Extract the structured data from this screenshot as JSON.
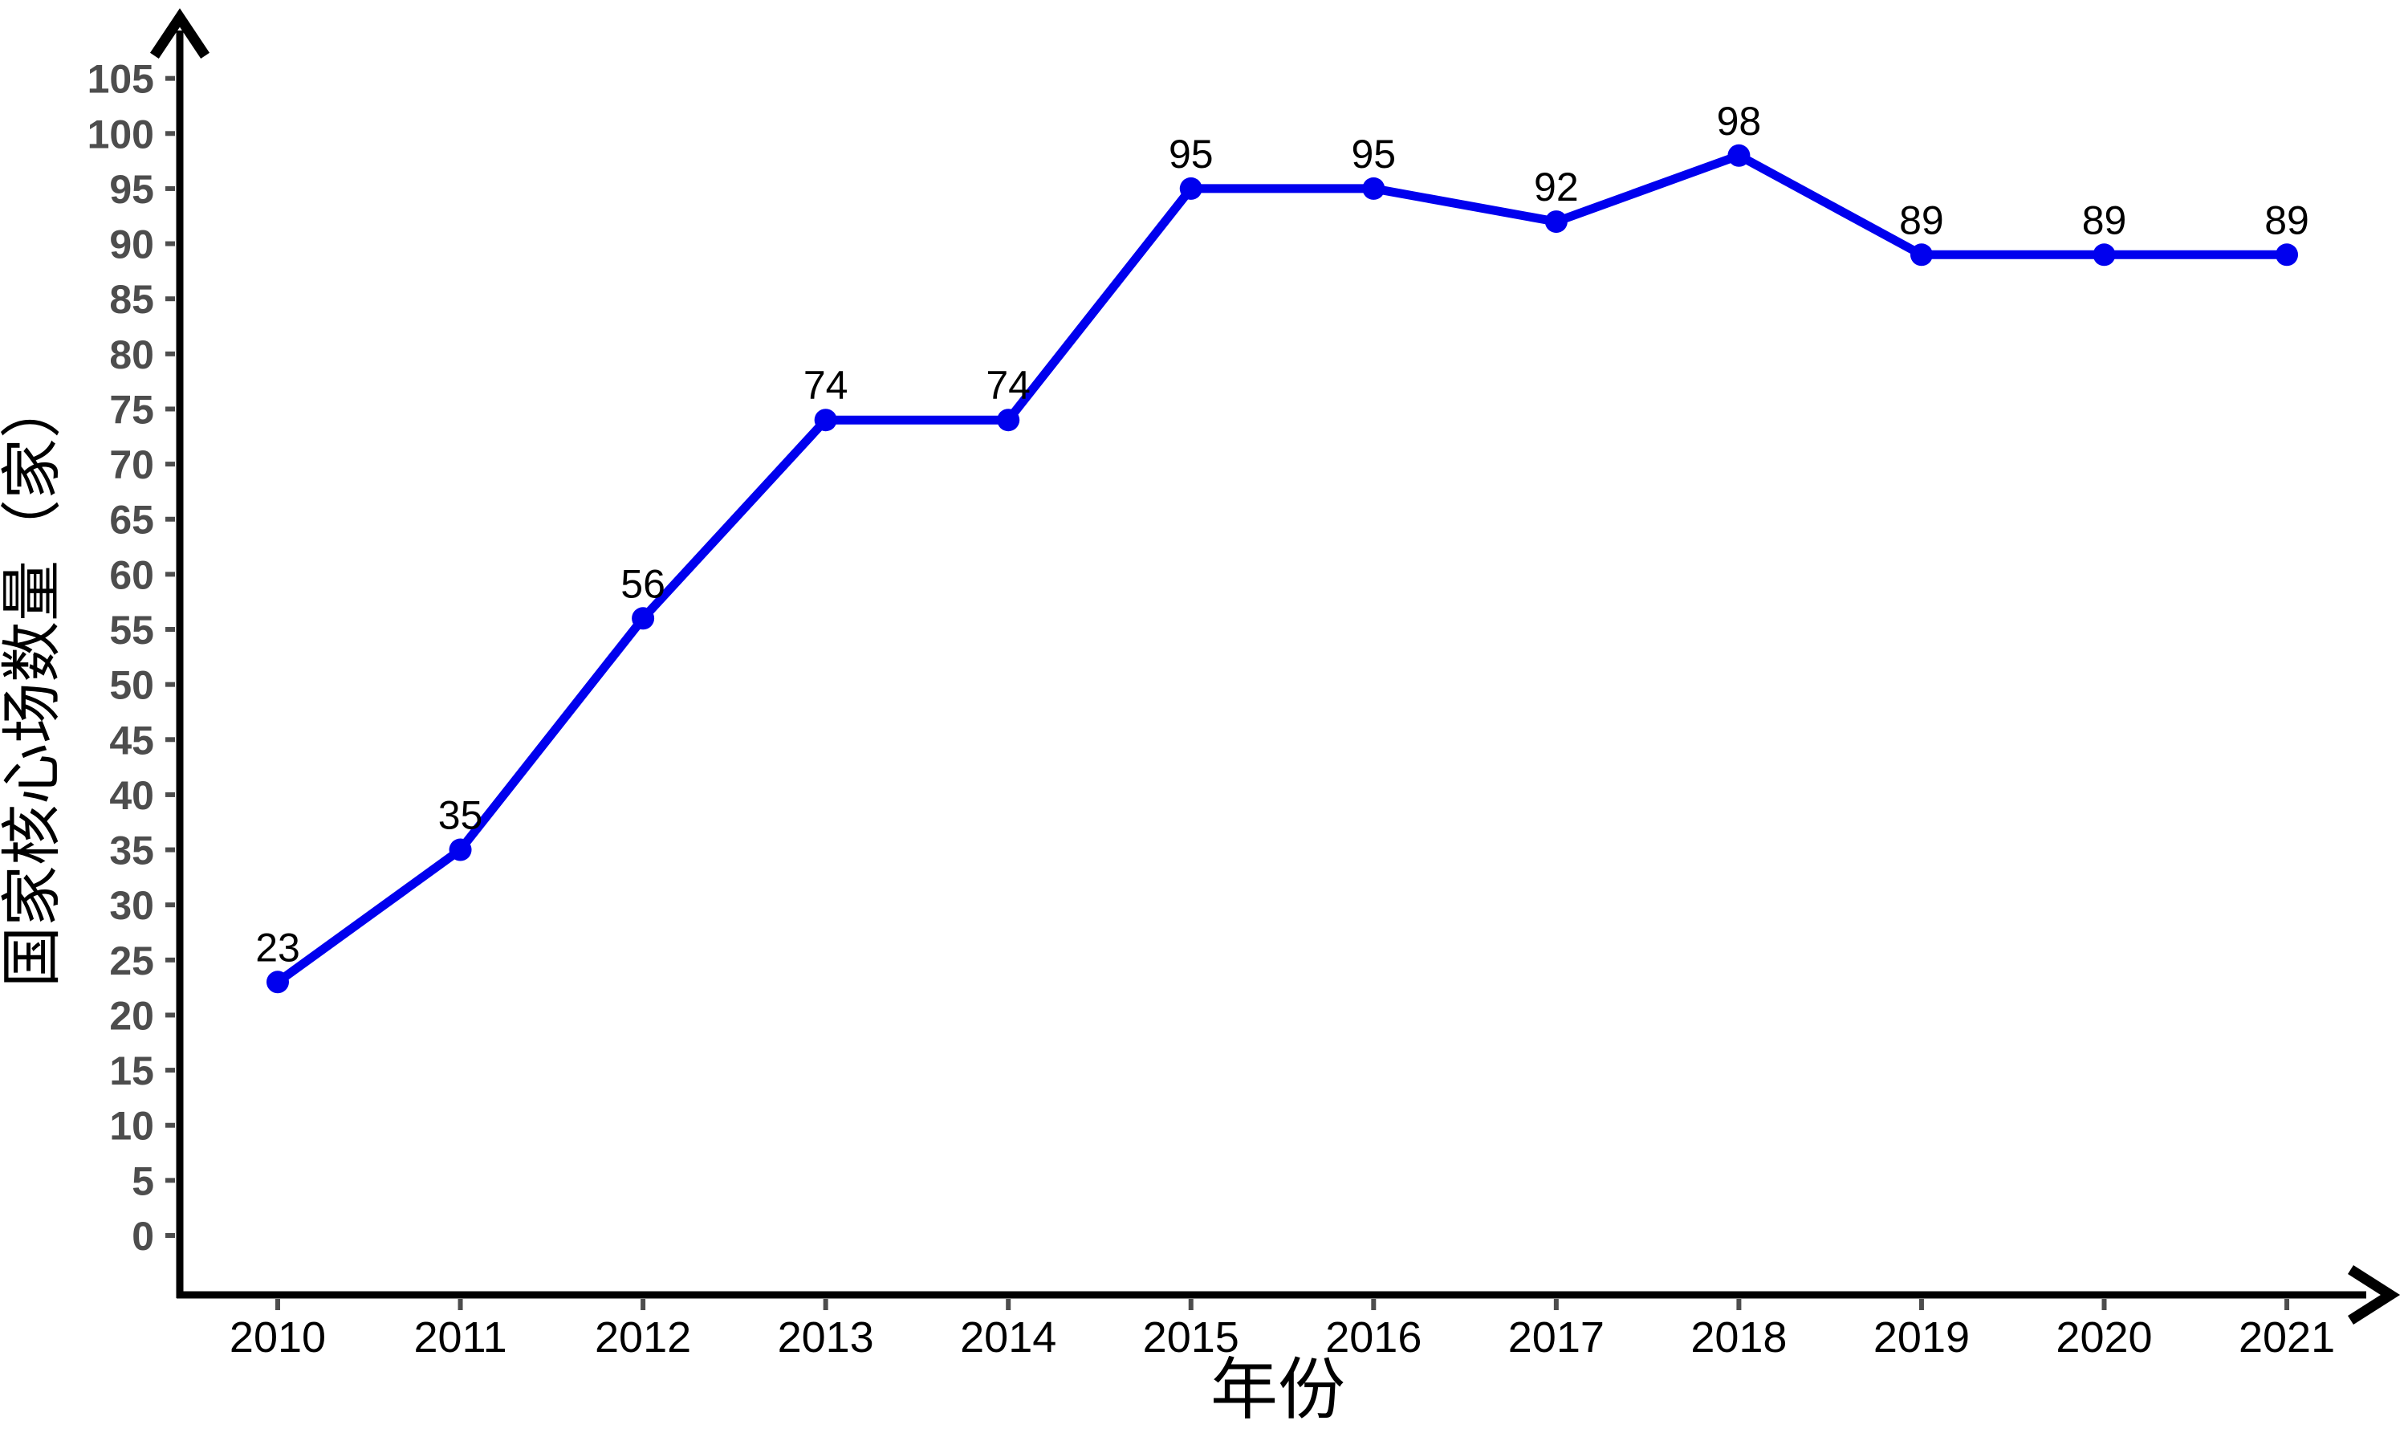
{
  "chart_data": {
    "type": "line",
    "title": "",
    "xlabel": "年份",
    "ylabel": "国家核心场数量（家）",
    "categories": [
      "2010",
      "2011",
      "2012",
      "2013",
      "2014",
      "2015",
      "2016",
      "2017",
      "2018",
      "2019",
      "2020",
      "2021"
    ],
    "values": [
      23,
      35,
      56,
      74,
      74,
      95,
      95,
      92,
      98,
      89,
      89,
      89
    ],
    "ylim": [
      0,
      105
    ],
    "ytick_step": 5,
    "grid": false,
    "legend": null,
    "data_labels": true,
    "marker": "circle"
  },
  "colors": {
    "line": "#0000ee",
    "marker": "#0000ee",
    "axis": "#000000",
    "tick": "#4d4d4d",
    "y_tick_label": "#4d4d4d",
    "x_tick_label": "#000000",
    "data_label": "#000000",
    "background": "#ffffff"
  }
}
